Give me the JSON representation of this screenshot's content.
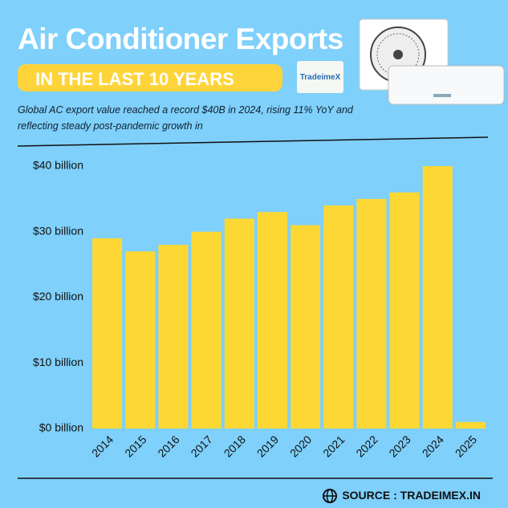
{
  "chart_data": {
    "type": "bar",
    "title": "Air Conditioner Exports",
    "subtitle": "IN THE LAST 10 YEARS",
    "logo": "TradeimeX",
    "description": "Global AC export value reached a record $40B in 2024, rising 11% YoY and reflecting steady post-pandemic growth in",
    "source": "SOURCE : TRADEIMEX.IN",
    "categories": [
      "2014",
      "2015",
      "2016",
      "2017",
      "2018",
      "2019",
      "2020",
      "2021",
      "2022",
      "2023",
      "2024",
      "2025"
    ],
    "values": [
      29,
      27,
      28,
      30,
      32,
      33,
      31,
      34,
      35,
      36,
      40,
      1
    ],
    "color": "#fdd835",
    "ylim": [
      0,
      40
    ],
    "yticks": [
      {
        "value": 0,
        "label": "$0 billion"
      },
      {
        "value": 10,
        "label": "$10 billion"
      },
      {
        "value": 20,
        "label": "$20 billion"
      },
      {
        "value": 30,
        "label": "$30 billion"
      },
      {
        "value": 40,
        "label": "$40 billion"
      }
    ],
    "grid": false
  }
}
